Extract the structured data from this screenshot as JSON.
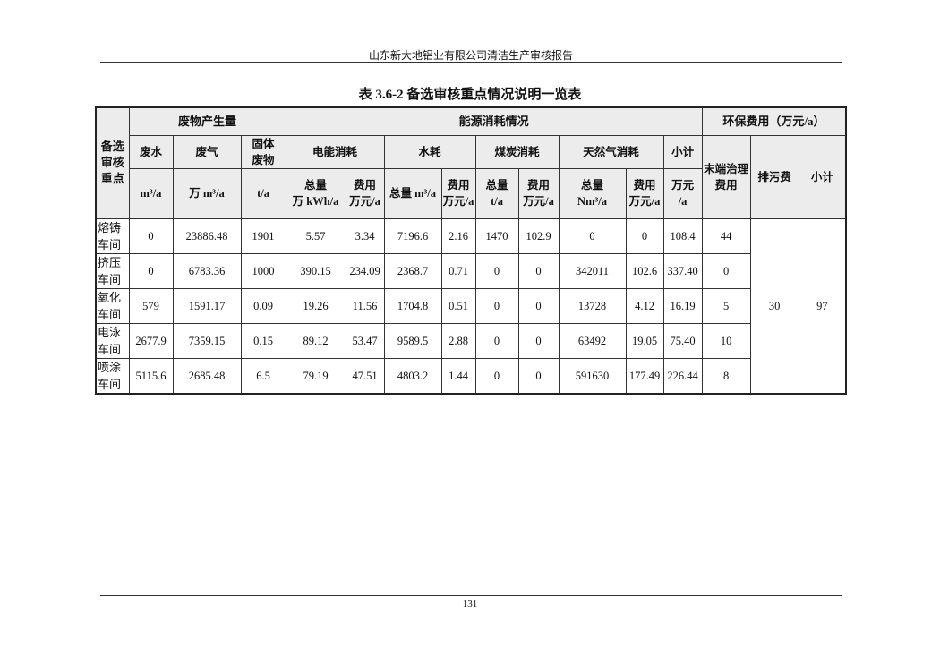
{
  "page_header": "山东新大地铝业有限公司清洁生产审核报告",
  "table_title": "表 3.6-2  备选审核重点情况说明一览表",
  "headers": {
    "focus": "备选\n审核\n重点",
    "waste": "废物产生量",
    "energy": "能源消耗情况",
    "env_cost": "环保费用（万元/a）",
    "wastewater": "废水",
    "waste_gas": "废气",
    "solid_waste": "固体\n废物",
    "electricity": "电能消耗",
    "water": "水耗",
    "coal": "煤炭消耗",
    "gas": "天然气消耗",
    "energy_subtotal": "小计",
    "end_treatment": "末端治理\n费用",
    "discharge_fee": "排污费",
    "env_subtotal": "小计",
    "units": [
      "m³/a",
      "万 m³/a",
      "t/a",
      "总量\n万 kWh/a",
      "费用\n万元/a",
      "总量 m³/a",
      "费用\n万元/a",
      "总量\nt/a",
      "费用\n万元/a",
      "总量\nNm³/a",
      "费用\n万元/a",
      "万元\n/a"
    ]
  },
  "rows": [
    {
      "name": "熔铸\n车间",
      "values": [
        "0",
        "23886.48",
        "1901",
        "5.57",
        "3.34",
        "7196.6",
        "2.16",
        "1470",
        "102.9",
        "0",
        "0",
        "108.4",
        "44"
      ]
    },
    {
      "name": "挤压\n车间",
      "values": [
        "0",
        "6783.36",
        "1000",
        "390.15",
        "234.09",
        "2368.7",
        "0.71",
        "0",
        "0",
        "342011",
        "102.6",
        "337.40",
        "0"
      ]
    },
    {
      "name": "氧化\n车间",
      "values": [
        "579",
        "1591.17",
        "0.09",
        "19.26",
        "11.56",
        "1704.8",
        "0.51",
        "0",
        "0",
        "13728",
        "4.12",
        "16.19",
        "5"
      ]
    },
    {
      "name": "电泳\n车间",
      "values": [
        "2677.9",
        "7359.15",
        "0.15",
        "89.12",
        "53.47",
        "9589.5",
        "2.88",
        "0",
        "0",
        "63492",
        "19.05",
        "75.40",
        "10"
      ]
    },
    {
      "name": "喷涂\n车间",
      "values": [
        "5115.6",
        "2685.48",
        "6.5",
        "79.19",
        "47.51",
        "4803.2",
        "1.44",
        "0",
        "0",
        "591630",
        "177.49",
        "226.44",
        "8"
      ]
    }
  ],
  "discharge_fee_total": "30",
  "env_subtotal_total": "97",
  "page_number": "131"
}
